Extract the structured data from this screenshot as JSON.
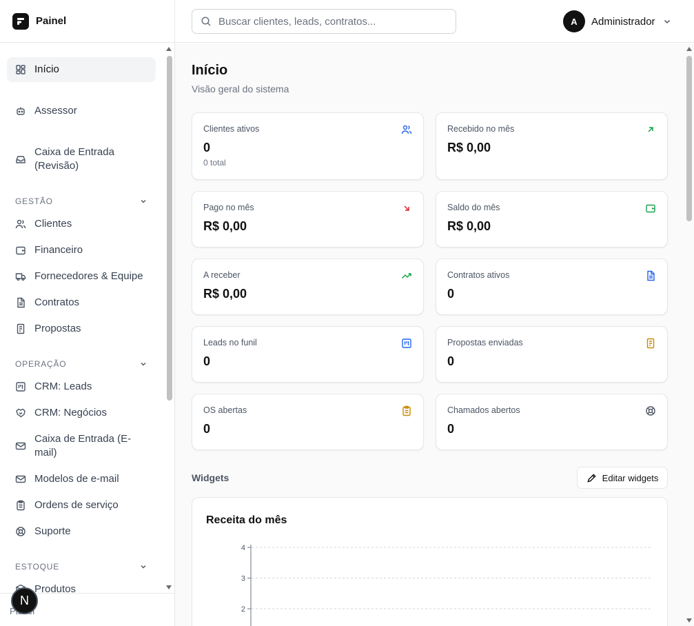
{
  "brand": {
    "name": "Painel"
  },
  "search": {
    "placeholder": "Buscar clientes, leads, contratos..."
  },
  "user": {
    "initial": "A",
    "name": "Administrador"
  },
  "sidebar": {
    "items": [
      {
        "label": "Início",
        "icon": "layout-dashboard-icon",
        "active": true
      },
      {
        "label": "Assessor",
        "icon": "bot-icon"
      },
      {
        "label": "Caixa de Entrada (Revisão)",
        "icon": "inbox-icon"
      }
    ],
    "sections": [
      {
        "title": "GESTÃO",
        "items": [
          {
            "label": "Clientes",
            "icon": "users-icon"
          },
          {
            "label": "Financeiro",
            "icon": "wallet-icon"
          },
          {
            "label": "Fornecedores & Equipe",
            "icon": "truck-icon"
          },
          {
            "label": "Contratos",
            "icon": "file-text-icon"
          },
          {
            "label": "Propostas",
            "icon": "receipt-icon"
          }
        ]
      },
      {
        "title": "OPERAÇÃO",
        "items": [
          {
            "label": "CRM: Leads",
            "icon": "kanban-icon"
          },
          {
            "label": "CRM: Negócios",
            "icon": "handshake-icon"
          },
          {
            "label": "Caixa de Entrada (E-mail)",
            "icon": "mail-icon"
          },
          {
            "label": "Modelos de e-mail",
            "icon": "mail-template-icon"
          },
          {
            "label": "Ordens de serviço",
            "icon": "clipboard-icon"
          },
          {
            "label": "Suporte",
            "icon": "life-buoy-icon"
          }
        ]
      },
      {
        "title": "ESTOQUE",
        "items": [
          {
            "label": "Produtos",
            "icon": "package-icon"
          }
        ]
      }
    ],
    "footer_text": "Painel",
    "badge": "N"
  },
  "main": {
    "title": "Início",
    "subtitle": "Visão geral do sistema",
    "cards": [
      {
        "label": "Clientes ativos",
        "value": "0",
        "sub": "0 total",
        "icon": "users-icon",
        "color": "#2563eb"
      },
      {
        "label": "Recebido no mês",
        "value": "R$ 0,00",
        "icon": "arrow-up-right-icon",
        "color": "#16a34a"
      },
      {
        "label": "Pago no mês",
        "value": "R$ 0,00",
        "icon": "arrow-down-right-icon",
        "color": "#dc2626"
      },
      {
        "label": "Saldo do mês",
        "value": "R$ 0,00",
        "icon": "wallet-icon",
        "color": "#16a34a"
      },
      {
        "label": "A receber",
        "value": "R$ 0,00",
        "icon": "trending-up-icon",
        "color": "#16a34a"
      },
      {
        "label": "Contratos ativos",
        "value": "0",
        "icon": "file-text-icon",
        "color": "#2563eb"
      },
      {
        "label": "Leads no funil",
        "value": "0",
        "icon": "kanban-icon",
        "color": "#2563eb"
      },
      {
        "label": "Propostas enviadas",
        "value": "0",
        "icon": "receipt-icon",
        "color": "#ca8a04"
      },
      {
        "label": "OS abertas",
        "value": "0",
        "icon": "clipboard-icon",
        "color": "#ca8a04"
      },
      {
        "label": "Chamados abertos",
        "value": "0",
        "icon": "life-buoy-icon",
        "color": "#4b5563"
      }
    ],
    "widgets_title": "Widgets",
    "edit_widgets_label": "Editar widgets"
  },
  "chart_data": {
    "type": "bar",
    "title": "Receita do mês",
    "y_ticks": [
      "4",
      "3",
      "2"
    ],
    "ylim": [
      0,
      4
    ],
    "grid": true
  }
}
